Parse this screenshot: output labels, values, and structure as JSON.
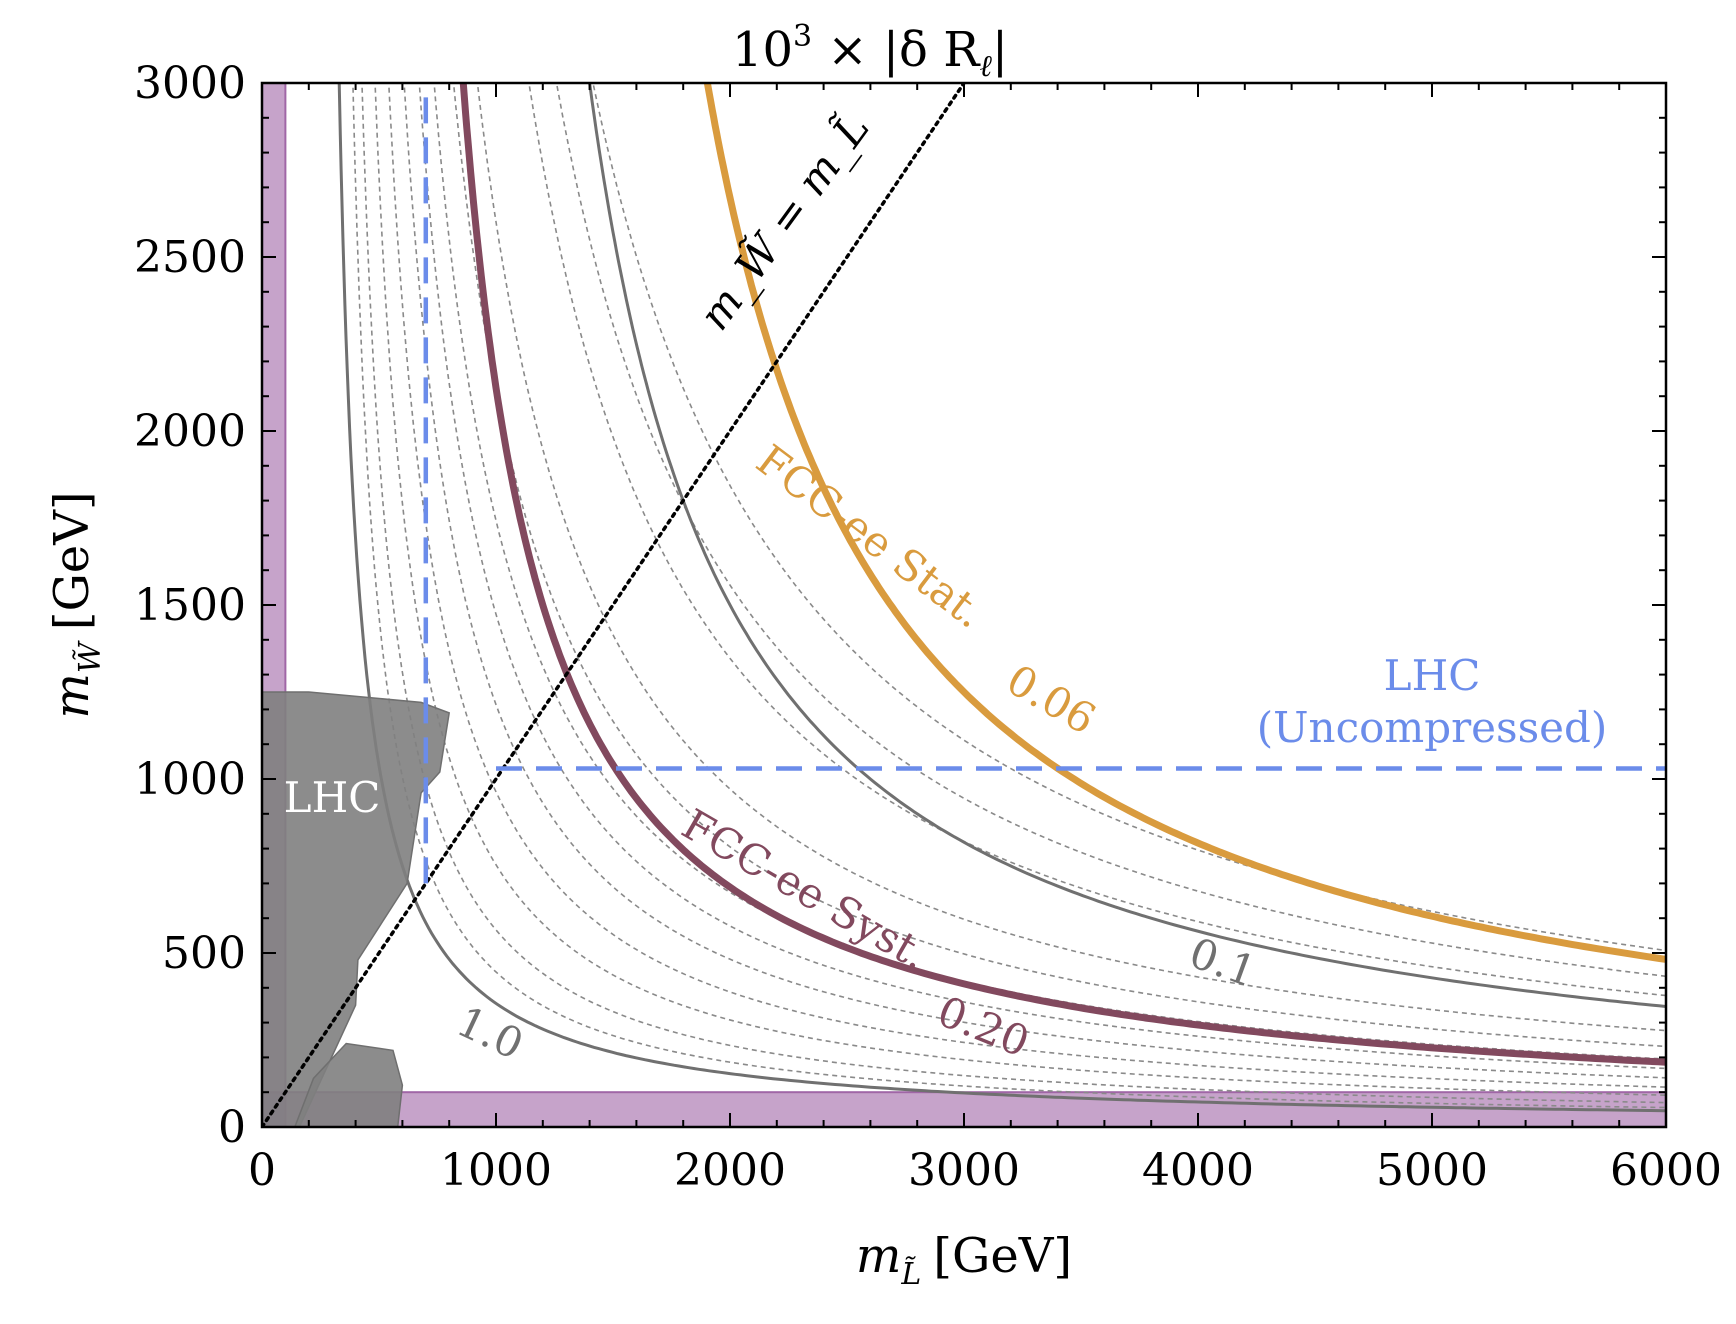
{
  "chart_data": {
    "type": "contour",
    "title": "10^3 × |δ R_ℓ|",
    "title_parts": {
      "base": "10",
      "exp": "3",
      "rest": " × |δ R",
      "sub": "ℓ",
      "end": "|"
    },
    "xlabel": "m_L̃ [GeV]",
    "xlabel_parts": {
      "var": "m",
      "sub": "L̃",
      "unit": "[GeV]"
    },
    "ylabel": "m_W̃ [GeV]",
    "ylabel_parts": {
      "var": "m",
      "sub": "W̃",
      "unit": "[GeV]"
    },
    "xlim": [
      0,
      6000
    ],
    "ylim": [
      0,
      3000
    ],
    "xticks": [
      0,
      1000,
      2000,
      3000,
      4000,
      5000,
      6000
    ],
    "yticks": [
      0,
      500,
      1000,
      1500,
      2000,
      2500,
      3000
    ],
    "xtick_labels": [
      "0",
      "1000",
      "2000",
      "3000",
      "4000",
      "5000",
      "6000"
    ],
    "ytick_labels": [
      "0",
      "500",
      "1000",
      "1500",
      "2000",
      "2500",
      "3000"
    ],
    "contour_model": "xy = k",
    "solid_contours": [
      {
        "level": 1.0,
        "label": "1.0",
        "k": 270000,
        "x_asymptote": 240,
        "color": "#707070"
      },
      {
        "level": 0.1,
        "label": "0.1",
        "k": 1800000,
        "x_asymptote": 800,
        "color": "#707070"
      }
    ],
    "dashed_contour_ks": [
      320000,
      400000,
      520000,
      650000,
      800000,
      950000,
      1100000,
      1300000,
      1550000,
      2100000,
      2400000,
      2800000
    ],
    "dashed_contour_color": "#8a8a8a",
    "highlight_contours": [
      {
        "name": "FCC-ee Syst.",
        "level": 0.2,
        "label": "0.20",
        "k": 1020000,
        "x_asymptote": 520,
        "color": "#82495e"
      },
      {
        "name": "FCC-ee Stat.",
        "level": 0.06,
        "label": "0.06",
        "k": 2350000,
        "x_asymptote": 1120,
        "color": "#d99b3e"
      }
    ],
    "diagonal": {
      "label": "m_W̃ = m_L̃",
      "x": [
        0,
        3000
      ],
      "y": [
        0,
        3000
      ],
      "style": "dotted"
    },
    "lhc_uncompressed": {
      "label_line1": "LHC",
      "label_line2": "(Uncompressed)",
      "vertical_x": 700,
      "vertical_y": [
        700,
        3000
      ],
      "horizontal_y": 1030,
      "horizontal_x": [
        1000,
        6000
      ],
      "color": "#6b8cea"
    },
    "lhc_excluded_label": "LHC",
    "lhc_excluded_regions": [
      {
        "fill": "#808080",
        "points": [
          [
            0,
            1250
          ],
          [
            200,
            1250
          ],
          [
            680,
            1220
          ],
          [
            800,
            1190
          ],
          [
            760,
            1020
          ],
          [
            680,
            960
          ],
          [
            620,
            700
          ],
          [
            410,
            480
          ],
          [
            400,
            350
          ],
          [
            160,
            0
          ],
          [
            0,
            0
          ]
        ]
      },
      {
        "fill": "#808080",
        "points": [
          [
            140,
            0
          ],
          [
            220,
            140
          ],
          [
            360,
            240
          ],
          [
            560,
            220
          ],
          [
            600,
            120
          ],
          [
            580,
            0
          ]
        ]
      }
    ],
    "purple_bands": [
      {
        "orientation": "vertical",
        "x": [
          0,
          100
        ],
        "color": "#a066a6"
      },
      {
        "orientation": "horizontal",
        "y": [
          0,
          100
        ],
        "color": "#a066a6"
      }
    ]
  }
}
